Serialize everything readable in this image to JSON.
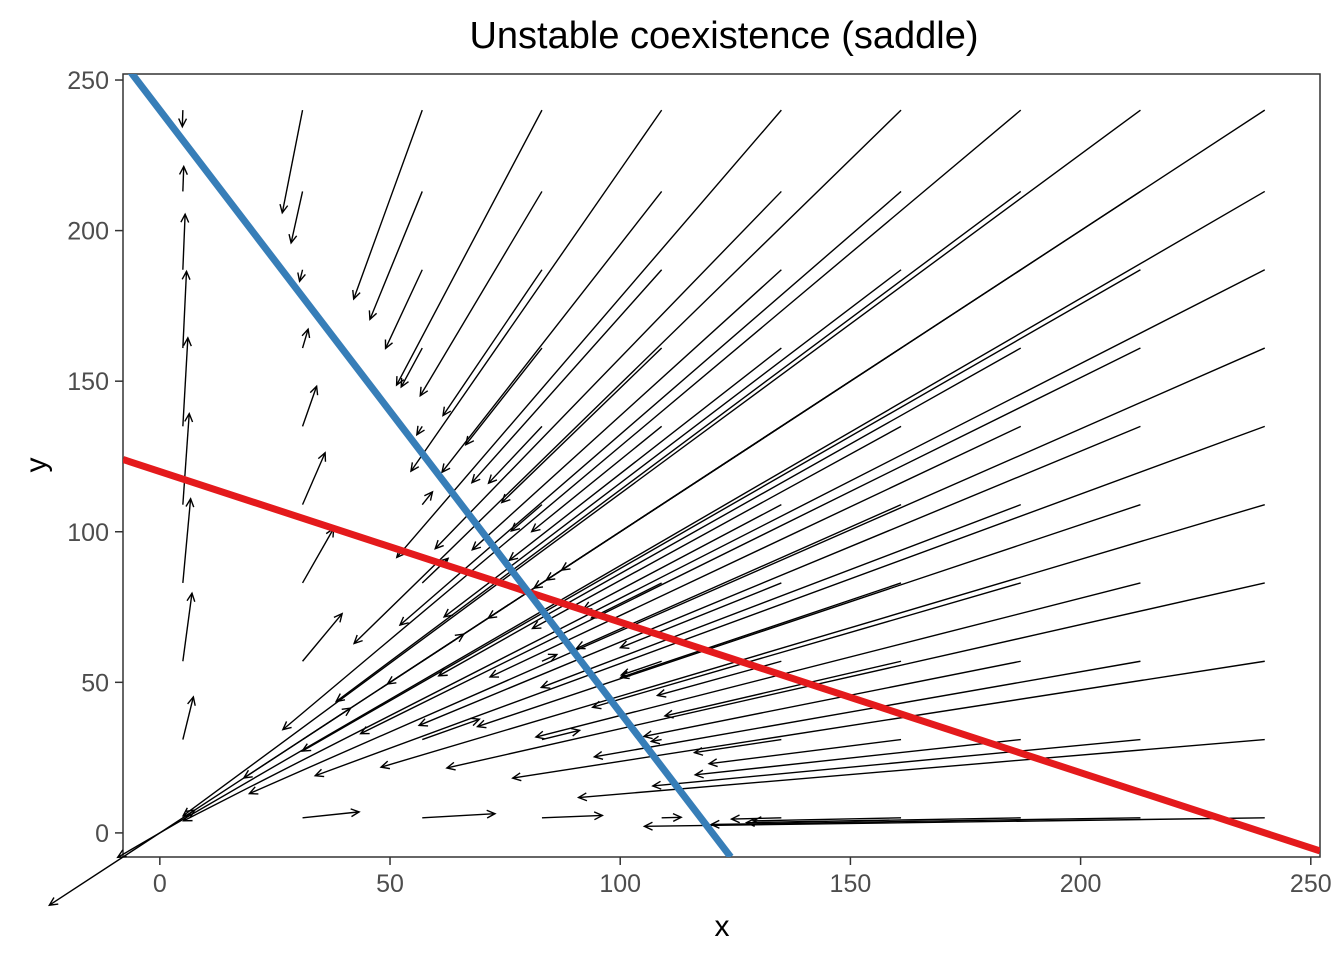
{
  "chart_data": {
    "type": "vector-field",
    "title": "Unstable coexistence (saddle)",
    "xlabel": "x",
    "ylabel": "y",
    "xlim": [
      -8,
      252
    ],
    "ylim": [
      -8,
      252
    ],
    "xticks": [
      0,
      50,
      100,
      150,
      200,
      250
    ],
    "yticks": [
      0,
      50,
      100,
      150,
      200,
      250
    ],
    "grid": false,
    "legend": "none",
    "field": {
      "grid_x": [
        5,
        31,
        57,
        83,
        109,
        135,
        161,
        187,
        213,
        240
      ],
      "grid_y": [
        5,
        31,
        57,
        83,
        109,
        135,
        161,
        187,
        213,
        240
      ],
      "model": "competition",
      "r1": 1.0,
      "K1": 120,
      "a12": 0.5,
      "r2": 1.0,
      "K2": 240,
      "a21": 2.0,
      "arrow_scale": 0.55
    },
    "series": [
      {
        "name": "",
        "color": "#e41a1c",
        "x": [
          -8,
          252
        ],
        "y": [
          124,
          -6
        ]
      },
      {
        "name": "",
        "color": "#377eb8",
        "x": [
          -8,
          124
        ],
        "y": [
          256,
          -8
        ]
      }
    ],
    "equilibrium": {
      "x": 80,
      "y": 80
    }
  }
}
